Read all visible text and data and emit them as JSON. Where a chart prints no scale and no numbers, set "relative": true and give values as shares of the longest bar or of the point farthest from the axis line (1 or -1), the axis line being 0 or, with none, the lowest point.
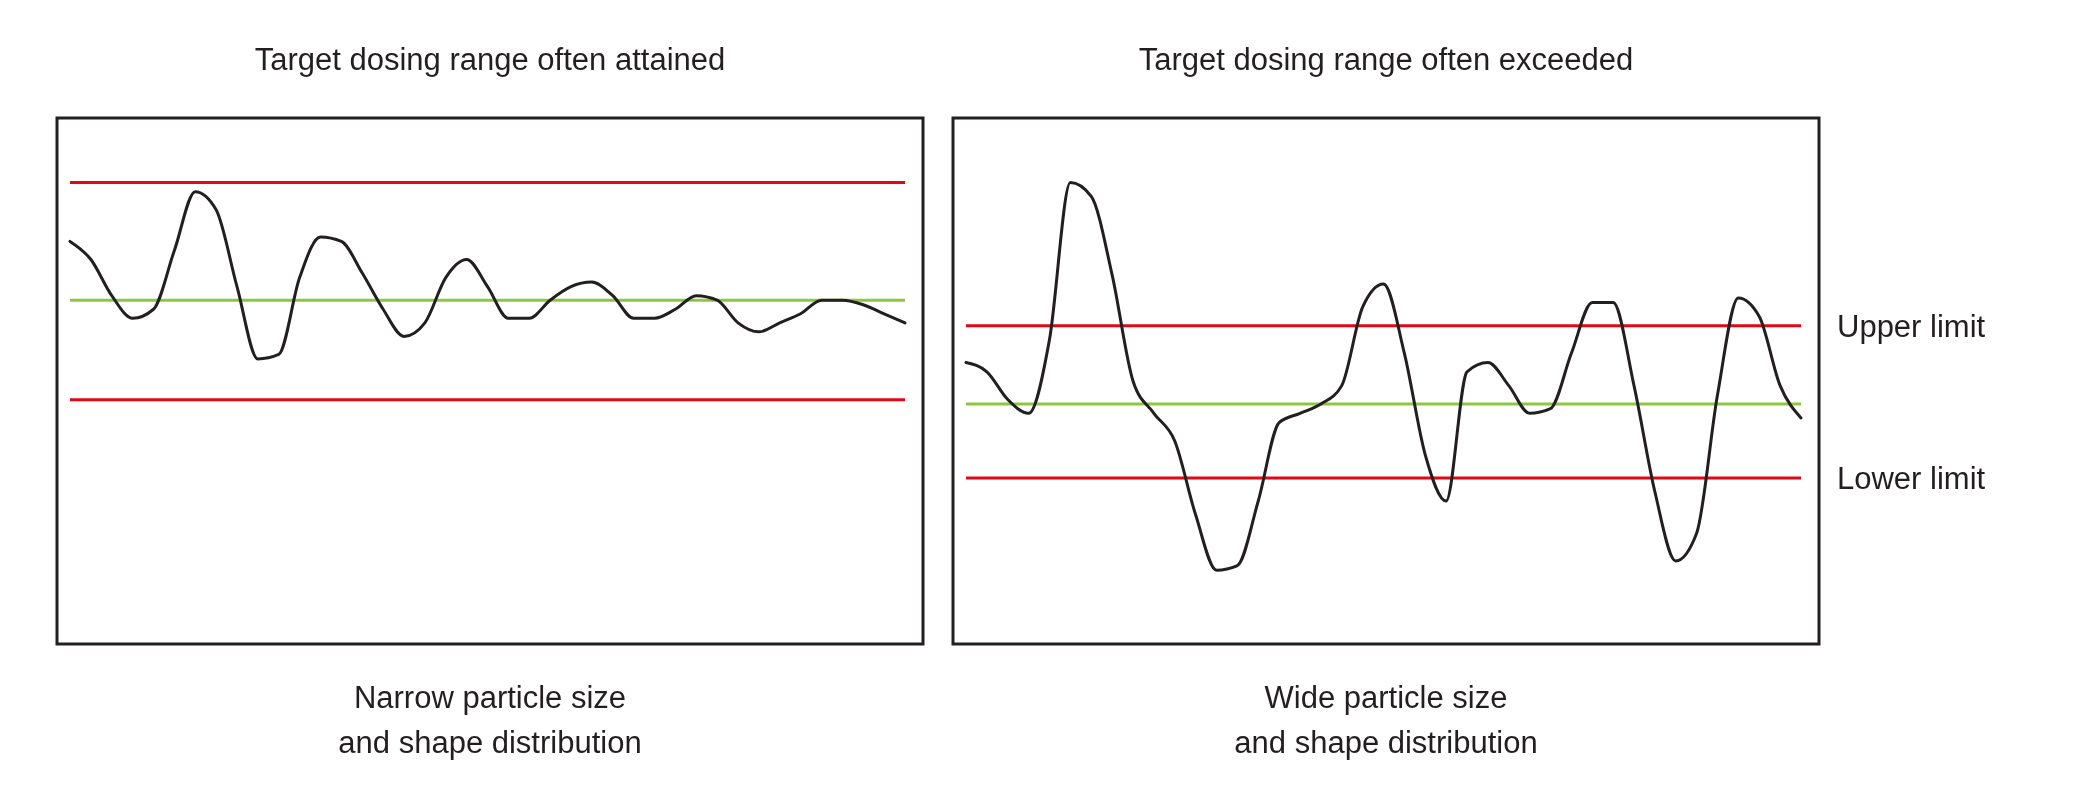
{
  "chart_data": [
    {
      "type": "line",
      "title": "Target dosing range often attained",
      "xlabel": "Narrow particle size\nand shape distribution",
      "relative": true,
      "categories": [
        null,
        null,
        null,
        null,
        null,
        null,
        null,
        null,
        null,
        null,
        null,
        null,
        null,
        null,
        null,
        null,
        null,
        null,
        null,
        null,
        null,
        null,
        null,
        null,
        null,
        null,
        null,
        null,
        null,
        null,
        null,
        null,
        null,
        null,
        null,
        null,
        null,
        null,
        null,
        null,
        null
      ],
      "series": [
        {
          "color": "#231f20",
          "values": [
            0.89,
            0.85,
            0.77,
            0.72,
            0.74,
            0.87,
            1.0,
            0.96,
            0.79,
            0.63,
            0.64,
            0.81,
            0.9,
            0.89,
            0.82,
            0.74,
            0.68,
            0.71,
            0.81,
            0.85,
            0.79,
            0.72,
            0.72,
            0.76,
            0.79,
            0.8,
            0.77,
            0.72,
            0.72,
            0.74,
            0.77,
            0.76,
            0.71,
            0.69,
            0.71,
            0.73,
            0.76,
            0.76,
            0.75,
            0.73,
            0.71
          ]
        }
      ],
      "ref_lines": [
        {
          "axis": "y",
          "value": 1.02,
          "color": "#e30613"
        },
        {
          "axis": "y",
          "value": 0.76,
          "color": "#8dc63f"
        },
        {
          "axis": "y",
          "value": 0.54,
          "color": "#e30613"
        }
      ]
    },
    {
      "type": "line",
      "title": "Target dosing range often exceeded",
      "xlabel": "Wide particle size\nand shape distribution",
      "relative": true,
      "categories": [
        null,
        null,
        null,
        null,
        null,
        null,
        null,
        null,
        null,
        null,
        null,
        null,
        null,
        null,
        null,
        null,
        null,
        null,
        null,
        null,
        null,
        null,
        null,
        null,
        null,
        null,
        null,
        null,
        null,
        null,
        null,
        null,
        null,
        null,
        null,
        null,
        null,
        null,
        null,
        null,
        null
      ],
      "series": [
        {
          "color": "#231f20",
          "values": [
            0.61,
            0.59,
            0.53,
            0.5,
            0.66,
            1.0,
            0.97,
            0.8,
            0.57,
            0.5,
            0.44,
            0.28,
            0.16,
            0.17,
            0.31,
            0.48,
            0.5,
            0.52,
            0.56,
            0.73,
            0.78,
            0.63,
            0.41,
            0.31,
            0.59,
            0.61,
            0.56,
            0.5,
            0.51,
            0.63,
            0.74,
            0.74,
            0.56,
            0.33,
            0.18,
            0.24,
            0.54,
            0.75,
            0.71,
            0.56,
            0.49
          ]
        }
      ],
      "ref_lines": [
        {
          "axis": "y",
          "value": 0.69,
          "color": "#e30613",
          "label": "Upper limit"
        },
        {
          "axis": "y",
          "value": 0.52,
          "color": "#8dc63f"
        },
        {
          "axis": "y",
          "value": 0.36,
          "color": "#e30613",
          "label": "Lower limit"
        }
      ]
    }
  ]
}
